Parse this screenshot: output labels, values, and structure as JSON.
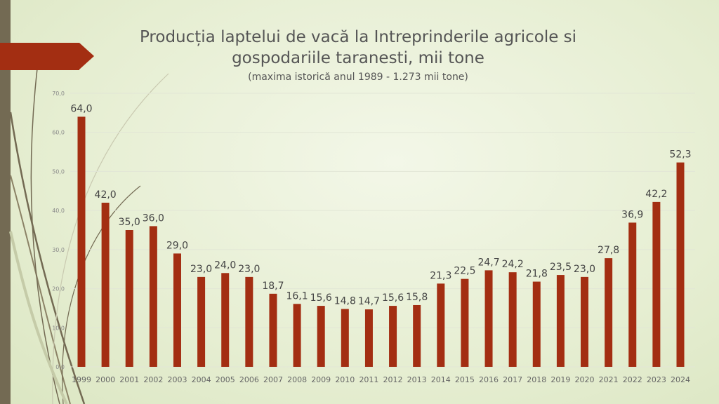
{
  "chart_data": {
    "type": "bar",
    "title": "Producția laptelui de vacă la Intreprinderile agricole si gospodariile taranesti, mii tone",
    "title_line1": "Producția laptelui de vacă la Intreprinderile agricole si",
    "title_line2": "gospodariile taranesti, mii tone",
    "subtitle": "(maxima istorică anul 1989 - 1.273 mii tone)",
    "categories": [
      "1999",
      "2000",
      "2001",
      "2002",
      "2003",
      "2004",
      "2005",
      "2006",
      "2007",
      "2008",
      "2009",
      "2010",
      "2011",
      "2012",
      "2013",
      "2014",
      "2015",
      "2016",
      "2017",
      "2018",
      "2019",
      "2020",
      "2021",
      "2022",
      "2023",
      "2024"
    ],
    "values": [
      64.0,
      42.0,
      35.0,
      36.0,
      29.0,
      23.0,
      24.0,
      23.0,
      18.7,
      16.1,
      15.6,
      14.8,
      14.7,
      15.6,
      15.8,
      21.3,
      22.5,
      24.7,
      24.2,
      21.8,
      23.5,
      23.0,
      27.8,
      36.9,
      42.2,
      52.3
    ],
    "data_labels": [
      "64,0",
      "42,0",
      "35,0",
      "36,0",
      "29,0",
      "23,0",
      "24,0",
      "23,0",
      "18,7",
      "16,1",
      "15,6",
      "14,8",
      "14,7",
      "15,6",
      "15,8",
      "21,3",
      "22,5",
      "24,7",
      "24,2",
      "21,8",
      "23,5",
      "23,0",
      "27,8",
      "36,9",
      "42,2",
      "52,3"
    ],
    "yticks": [
      "0,0",
      "10,0",
      "20,0",
      "30,0",
      "40,0",
      "50,0",
      "60,0",
      "70,0"
    ],
    "ylim": [
      0,
      70
    ],
    "xlabel": "",
    "ylabel": "",
    "grid": true,
    "bar_color": "#a32e12"
  }
}
